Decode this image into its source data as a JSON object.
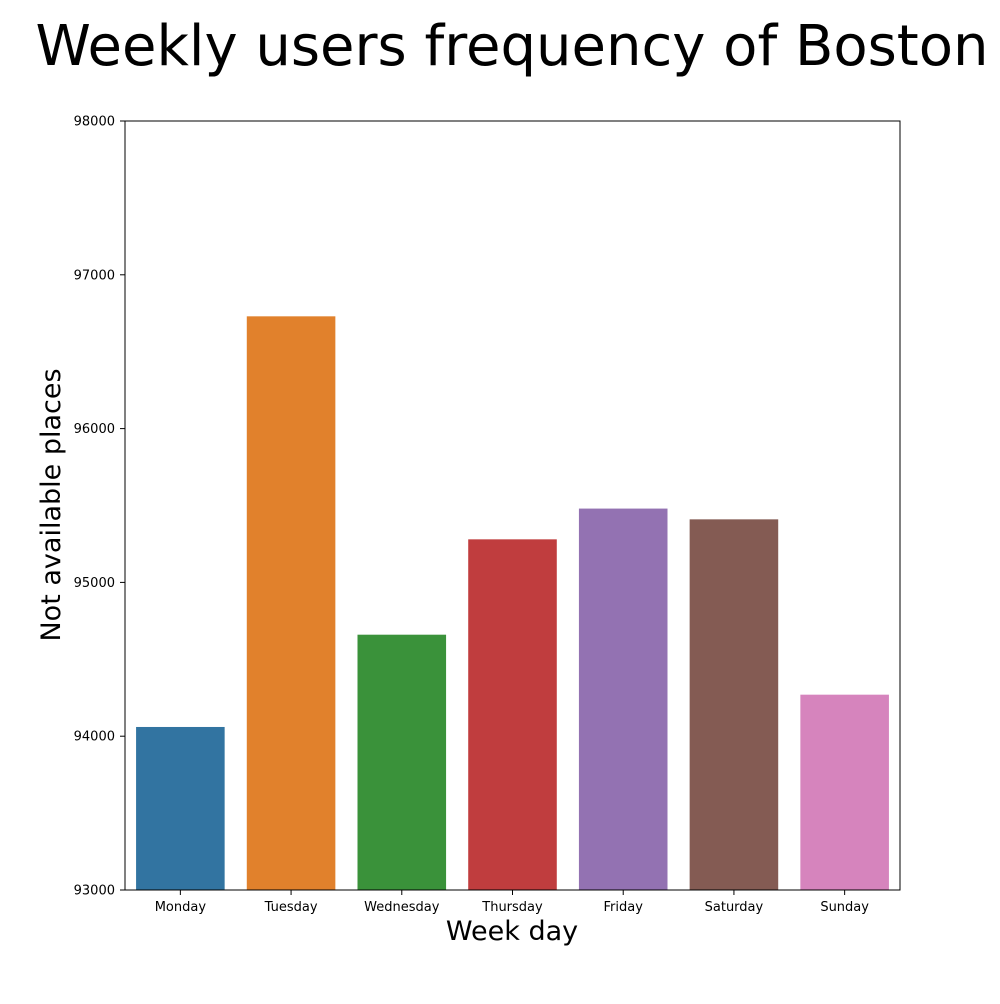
{
  "chart_data": {
    "type": "bar",
    "title": "Weekly users frequency of Boston",
    "xlabel": "Week day",
    "ylabel": "Not available places",
    "categories": [
      "Monday",
      "Tuesday",
      "Wednesday",
      "Thursday",
      "Friday",
      "Saturday",
      "Sunday"
    ],
    "values": [
      94060,
      96730,
      94660,
      95280,
      95480,
      95410,
      94270
    ],
    "colors": [
      "#3274a1",
      "#e1812c",
      "#3a923a",
      "#c03d3e",
      "#9372b2",
      "#845b53",
      "#d684bd"
    ],
    "ylim": [
      93000,
      98000
    ],
    "yticks": [
      93000,
      94000,
      95000,
      96000,
      97000,
      98000
    ],
    "grid": false,
    "legend": "none"
  }
}
